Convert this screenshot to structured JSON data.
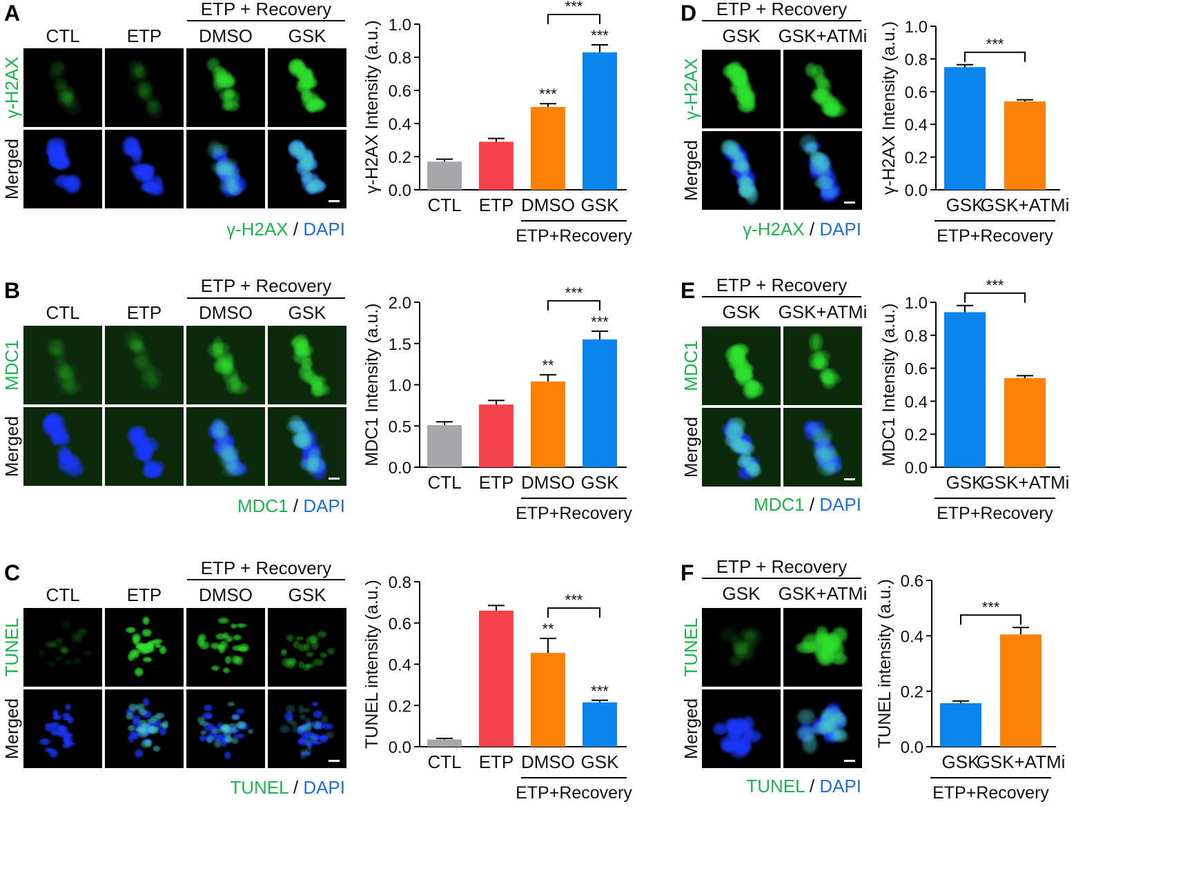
{
  "colors": {
    "gray": "#a7a7ab",
    "red": "#f5424a",
    "orange": "#fd8106",
    "blue": "#0b85ee",
    "green": "#1bb34f",
    "dapi": "#1e6fd8",
    "cell_green": "#2ee02e",
    "cell_blue": "#1a37ff"
  },
  "panels": [
    {
      "letter": "A",
      "group_label": "ETP + Recovery",
      "columns": [
        "CTL",
        "ETP",
        "DMSO",
        "GSK"
      ],
      "row_labels": [
        "γ-H2AX",
        "Merged"
      ],
      "legend": {
        "marker": "γ-H2AX",
        "sep": "/",
        "stain": "DAPI"
      },
      "signal": [
        0.08,
        0.12,
        0.55,
        0.85
      ],
      "shape": "blob"
    },
    {
      "letter": "B",
      "group_label": "ETP + Recovery",
      "columns": [
        "CTL",
        "ETP",
        "DMSO",
        "GSK"
      ],
      "row_labels": [
        "MDC1",
        "Merged"
      ],
      "legend": {
        "marker": "MDC1",
        "sep": "/",
        "stain": "DAPI"
      },
      "signal": [
        0.05,
        0.08,
        0.4,
        0.65
      ],
      "shape": "blob"
    },
    {
      "letter": "C",
      "group_label": "ETP + Recovery",
      "columns": [
        "CTL",
        "ETP",
        "DMSO",
        "GSK"
      ],
      "row_labels": [
        "TUNEL",
        "Merged"
      ],
      "legend": {
        "marker": "TUNEL",
        "sep": "/",
        "stain": "DAPI"
      },
      "signal": [
        0.08,
        0.9,
        0.75,
        0.4
      ],
      "shape": "spread"
    },
    {
      "letter": "D",
      "group_label": "ETP + Recovery",
      "columns": [
        "GSK",
        "GSK+ATMi"
      ],
      "row_labels": [
        "γ-H2AX",
        "Merged"
      ],
      "legend": {
        "marker": "γ-H2AX",
        "sep": "/",
        "stain": "DAPI"
      },
      "signal": [
        0.9,
        0.65
      ],
      "shape": "blob"
    },
    {
      "letter": "E",
      "group_label": "ETP + Recovery",
      "columns": [
        "GSK",
        "GSK+ATMi"
      ],
      "row_labels": [
        "MDC1",
        "Merged"
      ],
      "legend": {
        "marker": "MDC1",
        "sep": "/",
        "stain": "DAPI"
      },
      "signal": [
        0.9,
        0.45
      ],
      "shape": "blob"
    },
    {
      "letter": "F",
      "group_label": "ETP + Recovery",
      "columns": [
        "GSK",
        "GSK+ATMi"
      ],
      "row_labels": [
        "TUNEL",
        "Merged"
      ],
      "legend": {
        "marker": "TUNEL",
        "sep": "/",
        "stain": "DAPI"
      },
      "signal": [
        0.1,
        0.75
      ],
      "shape": "round"
    }
  ],
  "chart_data": [
    {
      "panel": "A",
      "type": "bar",
      "title": "",
      "ylabel": "γ-H2AX Intensity (a.u.)",
      "ylim": [
        0,
        1.0
      ],
      "yticks": [
        "0.0",
        "0.2",
        "0.4",
        "0.6",
        "0.8",
        "1.0"
      ],
      "categories": [
        "CTL",
        "ETP",
        "DMSO",
        "GSK"
      ],
      "values": [
        0.17,
        0.29,
        0.5,
        0.83
      ],
      "errors": [
        0.015,
        0.02,
        0.02,
        0.045
      ],
      "bar_colors": [
        "gray",
        "red",
        "orange",
        "blue"
      ],
      "significance": [
        "",
        "",
        "***",
        "***"
      ],
      "bracket": {
        "from": 2,
        "to": 3,
        "label": "***"
      },
      "group": {
        "label": "ETP+Recovery",
        "from": 2,
        "to": 3
      }
    },
    {
      "panel": "B",
      "type": "bar",
      "title": "",
      "ylabel": "MDC1 Intensity (a.u.)",
      "ylim": [
        0,
        2.0
      ],
      "yticks": [
        "0.0",
        "0.5",
        "1.0",
        "1.5",
        "2.0"
      ],
      "categories": [
        "CTL",
        "ETP",
        "DMSO",
        "GSK"
      ],
      "values": [
        0.51,
        0.76,
        1.04,
        1.55
      ],
      "errors": [
        0.04,
        0.05,
        0.08,
        0.1
      ],
      "bar_colors": [
        "gray",
        "red",
        "orange",
        "blue"
      ],
      "significance": [
        "",
        "",
        "**",
        "***"
      ],
      "bracket": {
        "from": 2,
        "to": 3,
        "label": "***"
      },
      "group": {
        "label": "ETP+Recovery",
        "from": 2,
        "to": 3
      }
    },
    {
      "panel": "C",
      "type": "bar",
      "title": "",
      "ylabel": "TUNEL intensity (a.u.)",
      "ylim": [
        0,
        0.8
      ],
      "yticks": [
        "0.0",
        "0.2",
        "0.4",
        "0.6",
        "0.8"
      ],
      "categories": [
        "CTL",
        "ETP",
        "DMSO",
        "GSK"
      ],
      "values": [
        0.035,
        0.66,
        0.455,
        0.215
      ],
      "errors": [
        0.005,
        0.025,
        0.07,
        0.01
      ],
      "bar_colors": [
        "gray",
        "red",
        "orange",
        "blue"
      ],
      "significance": [
        "",
        "",
        "**",
        "***"
      ],
      "bracket": {
        "from": 2,
        "to": 3,
        "label": "***"
      },
      "group": {
        "label": "ETP+Recovery",
        "from": 2,
        "to": 3
      }
    },
    {
      "panel": "D",
      "type": "bar",
      "title": "",
      "ylabel": "γ-H2AX Intensity (a.u.)",
      "ylim": [
        0,
        1.0
      ],
      "yticks": [
        "0.0",
        "0.2",
        "0.4",
        "0.6",
        "0.8",
        "1.0"
      ],
      "categories": [
        "GSK",
        "GSK+ATMi"
      ],
      "values": [
        0.75,
        0.54
      ],
      "errors": [
        0.015,
        0.01
      ],
      "bar_colors": [
        "blue",
        "orange"
      ],
      "significance": [
        "",
        ""
      ],
      "bracket": {
        "from": 0,
        "to": 1,
        "label": "***"
      },
      "group": {
        "label": "ETP+Recovery",
        "from": 0,
        "to": 1
      }
    },
    {
      "panel": "E",
      "type": "bar",
      "title": "",
      "ylabel": "MDC1 Intensity (a.u.)",
      "ylim": [
        0,
        1.0
      ],
      "yticks": [
        "0.0",
        "0.2",
        "0.4",
        "0.6",
        "0.8",
        "1.0"
      ],
      "categories": [
        "GSK",
        "GSK+ATMi"
      ],
      "values": [
        0.94,
        0.54
      ],
      "errors": [
        0.04,
        0.015
      ],
      "bar_colors": [
        "blue",
        "orange"
      ],
      "significance": [
        "",
        ""
      ],
      "bracket": {
        "from": 0,
        "to": 1,
        "label": "***"
      },
      "group": {
        "label": "ETP+Recovery",
        "from": 0,
        "to": 1
      }
    },
    {
      "panel": "F",
      "type": "bar",
      "title": "",
      "ylabel": "TUNEL intensity (a.u.)",
      "ylim": [
        0,
        0.6
      ],
      "yticks": [
        "0.0",
        "0.2",
        "0.4",
        "0.6"
      ],
      "categories": [
        "GSK",
        "GSK+ATMi"
      ],
      "values": [
        0.157,
        0.405
      ],
      "errors": [
        0.008,
        0.025
      ],
      "bar_colors": [
        "blue",
        "orange"
      ],
      "significance": [
        "",
        ""
      ],
      "bracket": {
        "from": 0,
        "to": 1,
        "label": "***"
      },
      "group": {
        "label": "ETP+Recovery",
        "from": 0,
        "to": 1
      }
    }
  ]
}
